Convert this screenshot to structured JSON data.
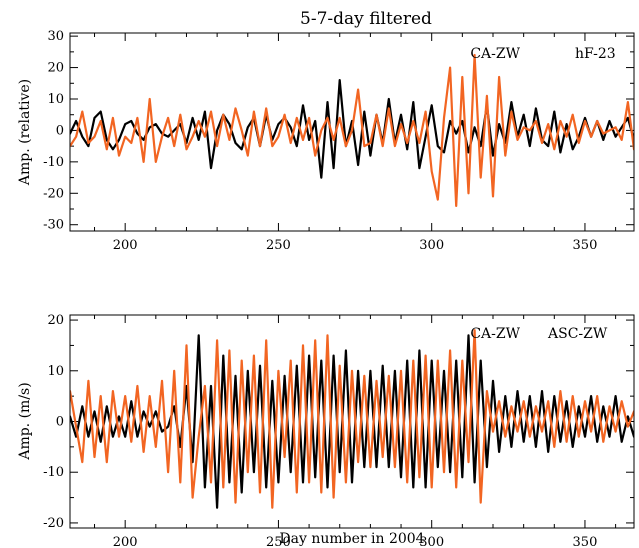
{
  "colors": {
    "black_series": "#000000",
    "orange_series": "#f26522",
    "axes": "#000000"
  },
  "chart_data": [
    {
      "type": "line",
      "title": "5-7-day filtered",
      "xlabel": "",
      "ylabel": "Amp. (relative)",
      "xlim": [
        182,
        366
      ],
      "ylim": [
        -32,
        31
      ],
      "xticks": [
        "200",
        "250",
        "300",
        "350"
      ],
      "yticks": [
        "-30",
        "-20",
        "-10",
        "0",
        "10",
        "20",
        "30"
      ],
      "series": [
        {
          "name": "CA-ZW",
          "color": "#000000",
          "x": [
            182,
            184,
            186,
            188,
            190,
            192,
            194,
            196,
            198,
            200,
            202,
            204,
            206,
            208,
            210,
            212,
            214,
            216,
            218,
            220,
            222,
            224,
            226,
            228,
            230,
            232,
            234,
            236,
            238,
            240,
            242,
            244,
            246,
            248,
            250,
            252,
            254,
            256,
            258,
            260,
            262,
            264,
            266,
            268,
            270,
            272,
            274,
            276,
            278,
            280,
            282,
            284,
            286,
            288,
            290,
            292,
            294,
            296,
            298,
            300,
            302,
            304,
            306,
            308,
            310,
            312,
            314,
            316,
            318,
            320,
            322,
            324,
            326,
            328,
            330,
            332,
            334,
            336,
            338,
            340,
            342,
            344,
            346,
            348,
            350,
            352,
            354,
            356,
            358,
            360,
            362,
            364,
            366
          ],
          "y": [
            -1,
            3,
            -2,
            -5,
            4,
            6,
            -3,
            -6,
            -3,
            2,
            3,
            -1,
            -3,
            1,
            2,
            -1,
            -2,
            0,
            2,
            -4,
            4,
            -3,
            6,
            -12,
            0,
            5,
            2,
            -4,
            -6,
            1,
            4,
            -5,
            5,
            -3,
            2,
            4,
            1,
            -5,
            8,
            -3,
            3,
            -15,
            9,
            -12,
            16,
            -5,
            3,
            -11,
            6,
            -8,
            5,
            -4,
            10,
            -4,
            5,
            -6,
            9,
            -12,
            -2,
            8,
            -5,
            -7,
            3,
            -1,
            3,
            -7,
            1,
            -5,
            8,
            -8,
            2,
            -4,
            9,
            -2,
            5,
            -5,
            7,
            -3,
            -5,
            6,
            -7,
            2,
            -6,
            -2,
            4,
            -2,
            3,
            -3,
            3,
            -2,
            1,
            4,
            -3
          ]
        },
        {
          "name": "hF-23",
          "color": "#f26522",
          "x": [
            182,
            184,
            186,
            188,
            190,
            192,
            194,
            196,
            198,
            200,
            202,
            204,
            206,
            208,
            210,
            212,
            214,
            216,
            218,
            220,
            222,
            224,
            226,
            228,
            230,
            232,
            234,
            236,
            238,
            240,
            242,
            244,
            246,
            248,
            250,
            252,
            254,
            256,
            258,
            260,
            262,
            264,
            266,
            268,
            270,
            272,
            274,
            276,
            278,
            280,
            282,
            284,
            286,
            288,
            290,
            292,
            294,
            296,
            298,
            300,
            302,
            304,
            306,
            308,
            310,
            312,
            314,
            316,
            318,
            320,
            322,
            324,
            326,
            328,
            330,
            332,
            334,
            336,
            338,
            340,
            342,
            344,
            346,
            348,
            350,
            352,
            354,
            356,
            358,
            360,
            362,
            364,
            366
          ],
          "y": [
            -5,
            -2,
            6,
            -4,
            -2,
            3,
            -6,
            4,
            -8,
            -2,
            -4,
            4,
            -10,
            10,
            -10,
            -2,
            4,
            -5,
            5,
            -6,
            -2,
            3,
            -2,
            6,
            -5,
            5,
            -3,
            7,
            0,
            -8,
            6,
            -5,
            7,
            -5,
            -2,
            5,
            -4,
            4,
            -3,
            4,
            -8,
            0,
            4,
            -3,
            4,
            -5,
            0,
            13,
            -5,
            -4,
            5,
            -5,
            7,
            -5,
            2,
            -4,
            3,
            -4,
            6,
            -13,
            -22,
            4,
            20,
            -24,
            17,
            -20,
            24,
            -15,
            11,
            -21,
            17,
            -8,
            6,
            -3,
            1,
            0,
            3,
            -4,
            2,
            -6,
            3,
            -2,
            5,
            -4,
            3,
            -2,
            3,
            -1,
            0,
            1,
            -3,
            9,
            -6
          ]
        }
      ]
    },
    {
      "type": "line",
      "title": "",
      "xlabel": "Day number in 2004",
      "ylabel": "Amp. (m/s)",
      "xlim": [
        182,
        366
      ],
      "ylim": [
        -21,
        21
      ],
      "xticks": [
        "200",
        "250",
        "300",
        "350"
      ],
      "yticks": [
        "-20",
        "-10",
        "0",
        "10",
        "20"
      ],
      "series": [
        {
          "name": "CA-ZW",
          "color": "#000000",
          "x": [
            182,
            184,
            186,
            188,
            190,
            192,
            194,
            196,
            198,
            200,
            202,
            204,
            206,
            208,
            210,
            212,
            214,
            216,
            218,
            220,
            222,
            224,
            226,
            228,
            230,
            232,
            234,
            236,
            238,
            240,
            242,
            244,
            246,
            248,
            250,
            252,
            254,
            256,
            258,
            260,
            262,
            264,
            266,
            268,
            270,
            272,
            274,
            276,
            278,
            280,
            282,
            284,
            286,
            288,
            290,
            292,
            294,
            296,
            298,
            300,
            302,
            304,
            306,
            308,
            310,
            312,
            314,
            316,
            318,
            320,
            322,
            324,
            326,
            328,
            330,
            332,
            334,
            336,
            338,
            340,
            342,
            344,
            346,
            348,
            350,
            352,
            354,
            356,
            358,
            360,
            362,
            364,
            366
          ],
          "y": [
            1,
            -3,
            3,
            -3,
            2,
            -4,
            3,
            -3,
            1,
            -3,
            4,
            -3,
            2,
            -1,
            2,
            -2,
            -1,
            3,
            -5,
            7,
            -8,
            17,
            -13,
            7,
            -17,
            13,
            -12,
            9,
            -14,
            10,
            -10,
            11,
            -13,
            8,
            -12,
            9,
            -10,
            11,
            -12,
            13,
            -11,
            12,
            -13,
            13,
            -10,
            14,
            -12,
            10,
            -9,
            10,
            -9,
            11,
            -9,
            10,
            -11,
            12,
            -13,
            14,
            -13,
            12,
            -9,
            10,
            -10,
            12,
            -11,
            17,
            -12,
            12,
            -9,
            8,
            -6,
            5,
            -5,
            6,
            -4,
            5,
            -5,
            6,
            -6,
            5,
            -4,
            4,
            -5,
            3,
            -3,
            5,
            -4,
            3,
            -3,
            5,
            -4,
            1,
            -3
          ]
        },
        {
          "name": "ASC-ZW",
          "color": "#f26522",
          "x": [
            182,
            184,
            186,
            188,
            190,
            192,
            194,
            196,
            198,
            200,
            202,
            204,
            206,
            208,
            210,
            212,
            214,
            216,
            218,
            220,
            222,
            224,
            226,
            228,
            230,
            232,
            234,
            236,
            238,
            240,
            242,
            244,
            246,
            248,
            250,
            252,
            254,
            256,
            258,
            260,
            262,
            264,
            266,
            268,
            270,
            272,
            274,
            276,
            278,
            280,
            282,
            284,
            286,
            288,
            290,
            292,
            294,
            296,
            298,
            300,
            302,
            304,
            306,
            308,
            310,
            312,
            314,
            316,
            318,
            320,
            322,
            324,
            326,
            328,
            330,
            332,
            334,
            336,
            338,
            340,
            342,
            344,
            346,
            348,
            350,
            352,
            354,
            356,
            358,
            360,
            362,
            364,
            366
          ],
          "y": [
            6,
            -1,
            -8,
            8,
            -7,
            5,
            -8,
            6,
            -3,
            5,
            -4,
            7,
            -6,
            5,
            -5,
            8,
            -10,
            10,
            -12,
            15,
            -15,
            -3,
            7,
            -12,
            16,
            -13,
            14,
            -16,
            12,
            -10,
            13,
            -14,
            16,
            -17,
            10,
            -7,
            12,
            -14,
            15,
            -12,
            16,
            -14,
            17,
            -15,
            11,
            -12,
            10,
            -8,
            9,
            -9,
            8,
            -7,
            9,
            -9,
            10,
            -12,
            12,
            -11,
            13,
            -13,
            12,
            -10,
            14,
            -13,
            12,
            -8,
            18,
            -16,
            6,
            -2,
            4,
            -3,
            3,
            -2,
            4,
            -3,
            3,
            -2,
            4,
            -5,
            6,
            -4,
            5,
            -3,
            4,
            -2,
            5,
            -4,
            3,
            -2,
            4,
            -1,
            2
          ]
        }
      ]
    }
  ]
}
